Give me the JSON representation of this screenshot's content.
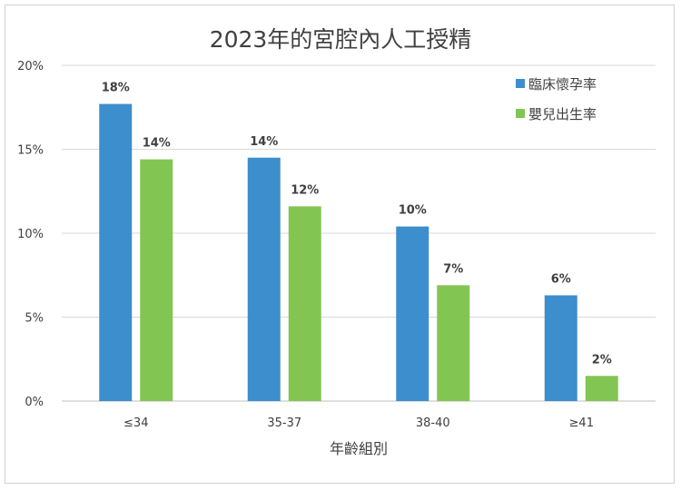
{
  "chart_data": {
    "type": "bar",
    "title": "2023年的宮腔內人工授精",
    "xlabel": "年齡組別",
    "ylabel": "",
    "categories": [
      "≤34",
      "35-37",
      "38-40",
      "≥41"
    ],
    "series": [
      {
        "name": "臨床懷孕率",
        "color": "#3d8ecc",
        "values": [
          17.7,
          14.5,
          10.4,
          6.3
        ],
        "labels": [
          "18%",
          "14%",
          "10%",
          "6%"
        ]
      },
      {
        "name": "嬰兒出生率",
        "color": "#83c553",
        "values": [
          14.4,
          11.6,
          6.9,
          1.5
        ],
        "labels": [
          "14%",
          "12%",
          "7%",
          "2%"
        ]
      }
    ],
    "ylim": [
      0,
      20
    ],
    "yticks": [
      0,
      5,
      10,
      15,
      20
    ],
    "ytick_labels": [
      "0%",
      "5%",
      "10%",
      "15%",
      "20%"
    ],
    "grid": true,
    "legend": "top-right"
  }
}
